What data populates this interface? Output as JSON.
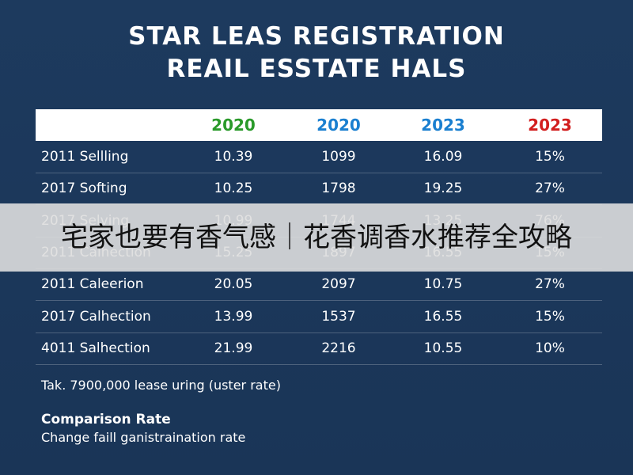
{
  "header": {
    "title_lines": [
      "STAR LEAS REGISTRATION",
      "REAIL ESSTATE HALS"
    ]
  },
  "table": {
    "columns": [
      "2020",
      "2020",
      "2023",
      "2023"
    ],
    "rows": [
      [
        "2011 Sellling",
        "10.39",
        "1099",
        "16.09",
        "15%"
      ],
      [
        "2017 Softing",
        "10.25",
        "1798",
        "19.25",
        "27%"
      ],
      [
        "2017 Selving",
        "10.99",
        "1744",
        "13.25",
        "76%"
      ],
      [
        "2011 Calhection",
        "15.25",
        "1897",
        "16.55",
        "15%"
      ],
      [
        "2011 Caleerion",
        "20.05",
        "2097",
        "10.75",
        "27%"
      ],
      [
        "2017 Calhection",
        "13.99",
        "1537",
        "16.55",
        "15%"
      ],
      [
        "4011 Salhection",
        "21.99",
        "2216",
        "10.55",
        "10%"
      ]
    ]
  },
  "footer": {
    "note": "Tak. 7900,000 lease uring (uster rate)",
    "heading": "Comparison Rate",
    "subheading": "Change faill ganistraination rate"
  },
  "banner": {
    "text": "宅家也要有香气感｜花香调香水推荐全攻略"
  }
}
